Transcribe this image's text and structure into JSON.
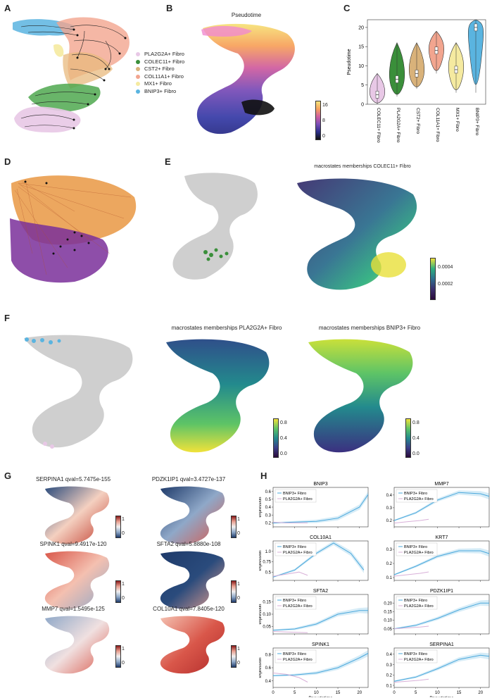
{
  "panels": {
    "A": "A",
    "B": "B",
    "C": "C",
    "D": "D",
    "E": "E",
    "F": "F",
    "G": "G",
    "H": "H"
  },
  "colors": {
    "PLA2G2A": "#e8c8e6",
    "COLEC11": "#3a8f3a",
    "CST2": "#d9b27a",
    "COL11A1": "#f2a58f",
    "MX1": "#f5eaa0",
    "BNIP3": "#5ab4e0"
  },
  "legendA": [
    {
      "label": "PLA2G2A+ Fibro",
      "color": "#e8c8e6"
    },
    {
      "label": "COLEC11+ Fibro",
      "color": "#3a8f3a"
    },
    {
      "label": "CST2+ Fibro",
      "color": "#d9b27a"
    },
    {
      "label": "COL11A1+ Fibro",
      "color": "#f2a58f"
    },
    {
      "label": "MX1+ Fibro",
      "color": "#f5eaa0"
    },
    {
      "label": "BNIP3+ Fibro",
      "color": "#5ab4e0"
    }
  ],
  "panelB": {
    "title": "Pseudotime",
    "cbar_ticks": [
      "16",
      "8",
      "0"
    ]
  },
  "panelE": {
    "title": "macrostates memberships COLEC11+ Fibro",
    "cbar_ticks": [
      "0.0004",
      "0.0002"
    ]
  },
  "panelF": {
    "title1": "macrostates memberships PLA2G2A+ Fibro",
    "title2": "macrostates memberships BNIP3+ Fibro",
    "cbar_ticks": [
      "0.8",
      "0.4",
      "0.0"
    ]
  },
  "panelG": {
    "titles": [
      "SERPINA1 qval=5.7475e-155",
      "PDZK1IP1 qval=3.4727e-137",
      "SPINK1 qval=9.4917e-120",
      "SFTA2 qval=5.8880e-108",
      "MMP7 qval=1.5495e-125",
      "COL10A1 qval=7.8405e-120"
    ],
    "cbar_ticks": [
      "1",
      "0"
    ]
  },
  "chart_data": [
    {
      "type": "violin",
      "title": "",
      "ylabel": "Pseudotime",
      "categories": [
        "COLEC11+ Fibro",
        "PLA2G2A+ Fibro",
        "CST2+ Fibro",
        "COL11A1+ Fibro",
        "MX1+ Fibro",
        "BNIP3+ Fibro"
      ],
      "medians": [
        2.5,
        6.5,
        8,
        14,
        9,
        20
      ],
      "mins": [
        0,
        2,
        4,
        8,
        3,
        3
      ],
      "maxs": [
        8,
        16,
        16,
        19,
        16,
        22
      ],
      "ylim": [
        0,
        22
      ],
      "yticks": [
        "0",
        "5",
        "10",
        "15",
        "20"
      ]
    },
    {
      "type": "line",
      "panel": "H",
      "xlabel": "Pseudotime",
      "ylabel": "expression",
      "xticks": [
        "0",
        "5",
        "10",
        "15",
        "20"
      ],
      "series_names": [
        "BNIP3+ Fibro",
        "PLA2G2A+ Fibro"
      ],
      "plots": [
        {
          "gene": "BNIP3",
          "yticks": [
            "0.2",
            "0.3",
            "0.4",
            "0.5",
            "0.6"
          ],
          "ylim": [
            0.15,
            0.65
          ],
          "bnip3": {
            "x": [
              0,
              5,
              10,
              15,
              20,
              22
            ],
            "y": [
              0.2,
              0.21,
              0.22,
              0.26,
              0.4,
              0.56
            ]
          },
          "pla2g2a": {
            "x": [
              0,
              3,
              6,
              8
            ],
            "y": [
              0.21,
              0.2,
              0.2,
              0.2
            ]
          }
        },
        {
          "gene": "MMP7",
          "yticks": [
            "0.2",
            "0.3",
            "0.4"
          ],
          "ylim": [
            0.15,
            0.46
          ],
          "bnip3": {
            "x": [
              0,
              5,
              10,
              15,
              20,
              22
            ],
            "y": [
              0.2,
              0.26,
              0.36,
              0.42,
              0.41,
              0.39
            ]
          },
          "pla2g2a": {
            "x": [
              0,
              3,
              6,
              8
            ],
            "y": [
              0.18,
              0.19,
              0.2,
              0.21
            ]
          }
        },
        {
          "gene": "COL10A1",
          "yticks": [
            "0.5",
            "0.75",
            "1.0"
          ],
          "ylim": [
            0.3,
            1.25
          ],
          "bnip3": {
            "x": [
              0,
              5,
              10,
              14,
              18,
              21
            ],
            "y": [
              0.38,
              0.55,
              0.95,
              1.2,
              0.95,
              0.55
            ]
          },
          "pla2g2a": {
            "x": [
              0,
              3,
              6,
              8
            ],
            "y": [
              0.4,
              0.45,
              0.5,
              0.42
            ]
          }
        },
        {
          "gene": "KRT7",
          "yticks": [
            "0.1",
            "0.2",
            "0.3"
          ],
          "ylim": [
            0.08,
            0.36
          ],
          "bnip3": {
            "x": [
              0,
              5,
              10,
              15,
              20,
              22
            ],
            "y": [
              0.12,
              0.18,
              0.25,
              0.29,
              0.29,
              0.27
            ]
          },
          "pla2g2a": {
            "x": [
              0,
              3,
              6,
              8
            ],
            "y": [
              0.11,
              0.12,
              0.13,
              0.14
            ]
          }
        },
        {
          "gene": "SFTA2",
          "yticks": [
            "0.05",
            "0.10",
            "0.15"
          ],
          "ylim": [
            0.02,
            0.18
          ],
          "bnip3": {
            "x": [
              0,
              5,
              10,
              15,
              20,
              22
            ],
            "y": [
              0.035,
              0.04,
              0.06,
              0.1,
              0.115,
              0.115
            ]
          },
          "pla2g2a": {
            "x": [
              0,
              3,
              6,
              8
            ],
            "y": [
              0.03,
              0.028,
              0.026,
              0.025
            ]
          }
        },
        {
          "gene": "PDZK1IP1",
          "yticks": [
            "0.05",
            "0.10",
            "0.15",
            "0.20"
          ],
          "ylim": [
            0.02,
            0.25
          ],
          "bnip3": {
            "x": [
              0,
              5,
              10,
              15,
              20,
              22
            ],
            "y": [
              0.05,
              0.07,
              0.11,
              0.16,
              0.2,
              0.2
            ]
          },
          "pla2g2a": {
            "x": [
              0,
              3,
              6,
              8
            ],
            "y": [
              0.05,
              0.055,
              0.06,
              0.065
            ]
          }
        },
        {
          "gene": "SPINK1",
          "yticks": [
            "0.4",
            "0.6",
            "0.8"
          ],
          "ylim": [
            0.3,
            0.9
          ],
          "bnip3": {
            "x": [
              0,
              5,
              10,
              15,
              20,
              22
            ],
            "y": [
              0.48,
              0.49,
              0.52,
              0.6,
              0.75,
              0.82
            ]
          },
          "pla2g2a": {
            "x": [
              0,
              3,
              6,
              8
            ],
            "y": [
              0.52,
              0.5,
              0.45,
              0.38
            ]
          }
        },
        {
          "gene": "SERPINA1",
          "yticks": [
            "0.1",
            "0.2",
            "0.3",
            "0.4"
          ],
          "ylim": [
            0.08,
            0.46
          ],
          "bnip3": {
            "x": [
              0,
              5,
              10,
              15,
              20,
              22
            ],
            "y": [
              0.14,
              0.18,
              0.26,
              0.35,
              0.39,
              0.38
            ]
          },
          "pla2g2a": {
            "x": [
              0,
              3,
              6,
              8
            ],
            "y": [
              0.13,
              0.14,
              0.15,
              0.16
            ]
          }
        }
      ]
    }
  ]
}
